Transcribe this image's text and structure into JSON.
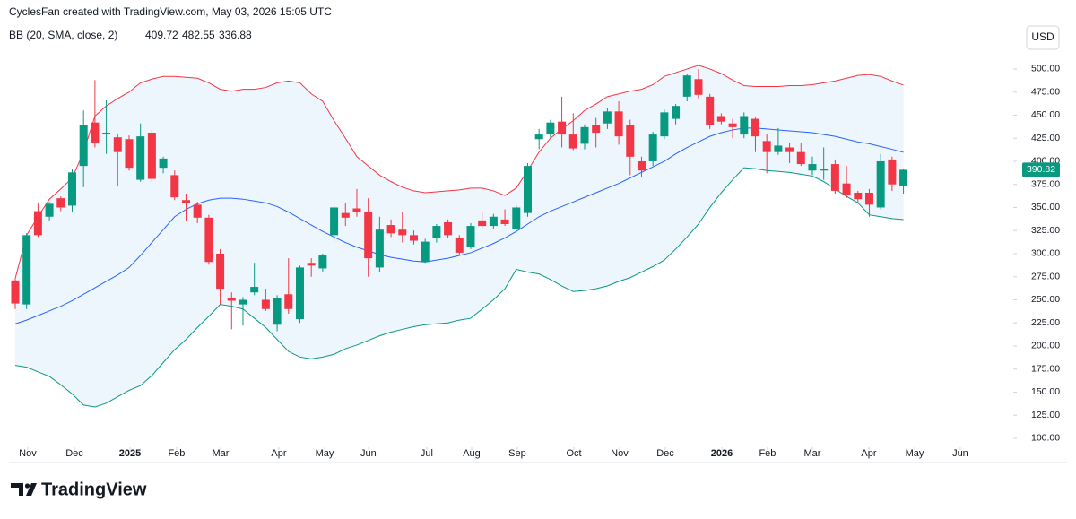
{
  "header": {
    "text": "CyclesFan created with TradingView.com, May 03, 2026 15:05 UTC"
  },
  "footer": {
    "logo": "TradingView"
  },
  "chart_data": {
    "type": "candlestick",
    "indicator": "BB (20, SMA, close, 2)",
    "currency": "USD",
    "up_color": "#089981",
    "down_color": "#f23645",
    "band_fill": "#e8f2fc",
    "open": [
      271,
      245,
      346,
      340,
      360,
      352,
      395,
      442,
      431,
      426,
      424,
      380,
      431,
      393,
      385,
      358,
      353,
      339,
      300,
      252,
      245,
      258,
      250,
      223,
      256,
      229,
      290,
      284,
      320,
      344,
      349,
      345,
      285,
      331,
      326,
      320,
      291,
      317,
      334,
      317,
      307,
      336,
      330,
      337,
      327,
      344,
      424,
      429,
      443,
      429,
      419,
      439,
      441,
      454,
      439,
      400,
      400,
      427,
      446,
      470,
      489,
      470,
      449,
      441,
      429,
      446,
      422,
      410,
      415,
      410,
      390,
      390,
      397,
      376,
      366,
      366,
      350,
      402,
      373
    ],
    "high": [
      273,
      322,
      355,
      356,
      362,
      392,
      455,
      488,
      466,
      430,
      428,
      441,
      434,
      405,
      390,
      365,
      356,
      342,
      305,
      258,
      253,
      290,
      262,
      255,
      295,
      287,
      295,
      300,
      352,
      355,
      370,
      360,
      340,
      337,
      345,
      325,
      316,
      332,
      337,
      320,
      333,
      345,
      343,
      348,
      352,
      398,
      435,
      445,
      470,
      452,
      440,
      447,
      458,
      465,
      445,
      405,
      432,
      456,
      462,
      495,
      500,
      473,
      452,
      446,
      453,
      448,
      430,
      436,
      420,
      420,
      405,
      415,
      402,
      395,
      368,
      370,
      408,
      405,
      392
    ],
    "low": [
      240,
      240,
      318,
      336,
      346,
      345,
      372,
      415,
      408,
      373,
      390,
      378,
      378,
      387,
      358,
      335,
      333,
      288,
      245,
      218,
      222,
      255,
      238,
      216,
      235,
      225,
      275,
      280,
      312,
      330,
      340,
      275,
      280,
      318,
      312,
      310,
      290,
      312,
      317,
      298,
      305,
      328,
      327,
      330,
      324,
      340,
      413,
      425,
      415,
      412,
      413,
      415,
      435,
      418,
      385,
      383,
      395,
      424,
      440,
      465,
      468,
      435,
      440,
      425,
      425,
      410,
      387,
      407,
      398,
      395,
      385,
      380,
      365,
      360,
      355,
      340,
      348,
      368,
      365
    ],
    "close": [
      246,
      320,
      320,
      354,
      350,
      388,
      439,
      420,
      431,
      410,
      393,
      427,
      381,
      403,
      361,
      355,
      339,
      291,
      262,
      249,
      250,
      264,
      240,
      252,
      240,
      285,
      287,
      298,
      350,
      339,
      345,
      295,
      326,
      322,
      320,
      314,
      313,
      330,
      320,
      301,
      330,
      330,
      340,
      332,
      350,
      395,
      429,
      442,
      429,
      414,
      437,
      431,
      454,
      427,
      405,
      390,
      429,
      453,
      460,
      493,
      472,
      439,
      443,
      437,
      449,
      427,
      410,
      417,
      410,
      397,
      397,
      392,
      368,
      363,
      359,
      353,
      400,
      375,
      390.82
    ],
    "series": [
      {
        "color": "#2962ff",
        "values": [
          224,
          228,
          233,
          238,
          243,
          249,
          256,
          263,
          270,
          277,
          285,
          298,
          312,
          326,
          340,
          348,
          354,
          358,
          360,
          360,
          359,
          357,
          355,
          351,
          345,
          338,
          331,
          324,
          318,
          312,
          307,
          303,
          299,
          296,
          294,
          292,
          291,
          293,
          295,
          298,
          301,
          306,
          311,
          317,
          324,
          332,
          340,
          346,
          351,
          356,
          361,
          366,
          371,
          376,
          382,
          388,
          394,
          400,
          408,
          415,
          421,
          427,
          431,
          434,
          436,
          436,
          435,
          434,
          433,
          432,
          431,
          429,
          427,
          424,
          421,
          419,
          416,
          413,
          409.72
        ]
      },
      {
        "color": "#f23645",
        "values": [
          273,
          320,
          340,
          359,
          370,
          382,
          410,
          449,
          460,
          468,
          475,
          485,
          489,
          492,
          492,
          491,
          490,
          485,
          478,
          476,
          478,
          478,
          480,
          485,
          487,
          485,
          473,
          465,
          444,
          425,
          405,
          395,
          385,
          378,
          372,
          368,
          366,
          367,
          368,
          369,
          371,
          371,
          368,
          363,
          371,
          390,
          410,
          425,
          435,
          444,
          455,
          462,
          470,
          473,
          476,
          478,
          483,
          492,
          496,
          500,
          504,
          500,
          495,
          488,
          482,
          481,
          481,
          481,
          482,
          482,
          483,
          485,
          487,
          490,
          493,
          494,
          492,
          487,
          482.55
        ]
      },
      {
        "color": "#089981",
        "values": [
          179,
          177,
          172,
          167,
          158,
          148,
          136,
          134,
          138,
          145,
          152,
          157,
          168,
          182,
          196,
          207,
          220,
          232,
          245,
          243,
          240,
          230,
          220,
          207,
          194,
          188,
          186,
          188,
          191,
          197,
          201,
          206,
          211,
          215,
          218,
          221,
          223,
          224,
          225,
          228,
          230,
          240,
          250,
          262,
          283,
          280,
          278,
          272,
          265,
          259,
          260,
          262,
          265,
          270,
          274,
          280,
          286,
          293,
          305,
          318,
          332,
          350,
          366,
          380,
          393,
          392,
          390,
          389,
          388,
          386,
          384,
          378,
          370,
          362,
          355,
          342,
          340,
          338,
          336.88
        ]
      }
    ],
    "xlim": [
      -0.55,
      87.64
    ],
    "xticks": [
      {
        "value": 1.1,
        "label": "Nov"
      },
      {
        "value": 5.2,
        "label": "Dec"
      },
      {
        "value": 10.08,
        "label": "2025"
      },
      {
        "value": 14.17,
        "label": "Feb"
      },
      {
        "value": 18.03,
        "label": "Mar"
      },
      {
        "value": 23.15,
        "label": "Apr"
      },
      {
        "value": 27.17,
        "label": "May"
      },
      {
        "value": 31.02,
        "label": "Jun"
      },
      {
        "value": 36.14,
        "label": "Jul"
      },
      {
        "value": 40.08,
        "label": "Aug"
      },
      {
        "value": 44.09,
        "label": "Sep"
      },
      {
        "value": 49.06,
        "label": "Oct"
      },
      {
        "value": 53.07,
        "label": "Nov"
      },
      {
        "value": 57.09,
        "label": "Dec"
      },
      {
        "value": 62.05,
        "label": "2026"
      },
      {
        "value": 66.06,
        "label": "Feb"
      },
      {
        "value": 70.0,
        "label": "Mar"
      },
      {
        "value": 74.96,
        "label": "Apr"
      },
      {
        "value": 78.98,
        "label": "May"
      },
      {
        "value": 82.99,
        "label": "Jun"
      }
    ],
    "ylim": [
      92.2,
      508.7
    ],
    "yticks": [
      {
        "value": 100,
        "label": "100.00"
      },
      {
        "value": 125,
        "label": "125.00"
      },
      {
        "value": 150,
        "label": "150.00"
      },
      {
        "value": 175,
        "label": "175.00"
      },
      {
        "value": 200,
        "label": "200.00"
      },
      {
        "value": 225,
        "label": "225.00"
      },
      {
        "value": 250,
        "label": "250.00"
      },
      {
        "value": 275,
        "label": "275.00"
      },
      {
        "value": 300,
        "label": "300.00"
      },
      {
        "value": 325,
        "label": "325.00"
      },
      {
        "value": 350,
        "label": "350.00"
      },
      {
        "value": 375,
        "label": "375.00"
      },
      {
        "value": 400,
        "label": "400.00"
      },
      {
        "value": 425,
        "label": "425.00"
      },
      {
        "value": 450,
        "label": "450.00"
      },
      {
        "value": 475,
        "label": "475.00"
      },
      {
        "value": 500,
        "label": "500.00"
      }
    ]
  }
}
